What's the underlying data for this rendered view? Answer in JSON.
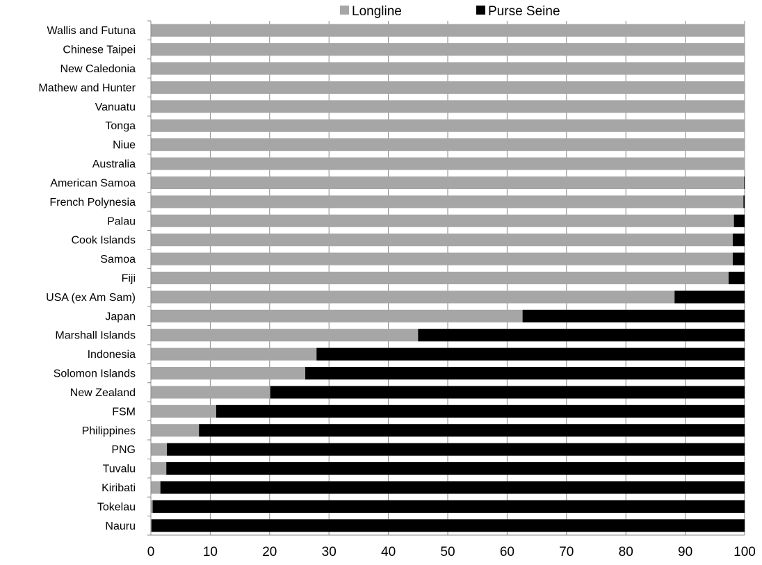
{
  "chart_data": {
    "type": "bar",
    "orientation": "horizontal",
    "stacked": true,
    "title": "",
    "xlabel": "",
    "ylabel": "",
    "xlim": [
      0,
      100
    ],
    "x_ticks": [
      0,
      10,
      20,
      30,
      40,
      50,
      60,
      70,
      80,
      90,
      100
    ],
    "grid": "vertical",
    "legend_position": "top",
    "categories": [
      "Wallis and Futuna",
      "Chinese Taipei",
      "New Caledonia",
      "Mathew and Hunter",
      "Vanuatu",
      "Tonga",
      "Niue",
      "Australia",
      "American Samoa",
      "French Polynesia",
      "Palau",
      "Cook Islands",
      "Samoa",
      "Fiji",
      "USA (ex Am Sam)",
      "Japan",
      "Marshall Islands",
      "Indonesia",
      "Solomon  Islands",
      "New Zealand",
      "FSM",
      "Philippines",
      "PNG",
      "Tuvalu",
      "Kiribati",
      "Tokelau",
      "Nauru"
    ],
    "series": [
      {
        "name": "Longline",
        "color": "#a6a6a6",
        "values": [
          100,
          100,
          100,
          100,
          100,
          100,
          100,
          100,
          99.9,
          99.8,
          98.2,
          98,
          98,
          97.3,
          88.2,
          62.6,
          45,
          27.9,
          26,
          20.1,
          11,
          8.1,
          2.7,
          2.6,
          1.6,
          0.3,
          0.1
        ]
      },
      {
        "name": "Purse Seine",
        "color": "#000000",
        "values": [
          0,
          0,
          0,
          0,
          0,
          0,
          0,
          0,
          0.1,
          0.2,
          1.8,
          2,
          2,
          2.7,
          11.8,
          37.4,
          55,
          72.1,
          74,
          79.9,
          89,
          91.9,
          97.3,
          97.4,
          98.4,
          99.7,
          99.9
        ]
      }
    ]
  }
}
